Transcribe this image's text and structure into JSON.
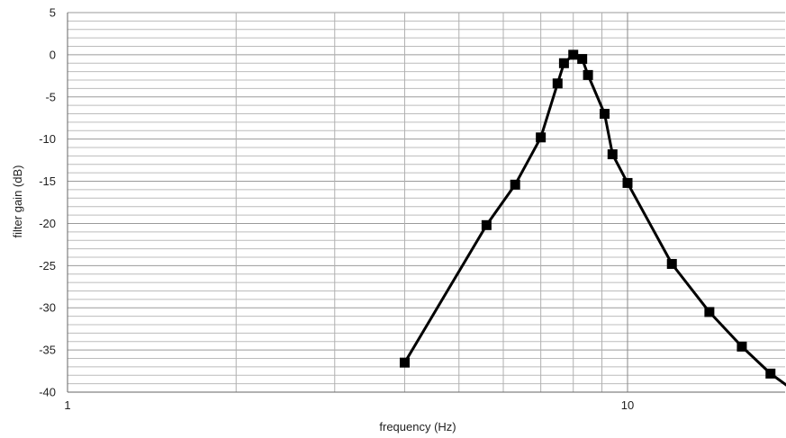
{
  "chart_data": {
    "type": "line",
    "title": "",
    "xlabel": "frequency (Hz)",
    "ylabel": "filter  gain (dB)",
    "x_scale": "log",
    "xlim": [
      1,
      20
    ],
    "ylim": [
      -40,
      5
    ],
    "y_ticks": [
      "5",
      "0",
      "-5",
      "-10",
      "-15",
      "-20",
      "-25",
      "-30",
      "-35",
      "-40"
    ],
    "x_ticks": [
      "1",
      "10"
    ],
    "grid": true,
    "legend": "none",
    "series": [
      {
        "marker": "square",
        "color": "#000000",
        "x": [
          4.0,
          5.6,
          6.3,
          7.0,
          7.5,
          7.7,
          8.0,
          8.3,
          8.5,
          9.1,
          9.4,
          10.0,
          12.0,
          14.0,
          16.0,
          18.0,
          20.0
        ],
        "y": [
          -36.5,
          -20.2,
          -15.4,
          -9.8,
          -3.4,
          -1.0,
          0.0,
          -0.5,
          -2.4,
          -7.0,
          -11.8,
          -15.2,
          -24.8,
          -30.5,
          -34.6,
          -37.8,
          -40.0
        ]
      }
    ]
  }
}
